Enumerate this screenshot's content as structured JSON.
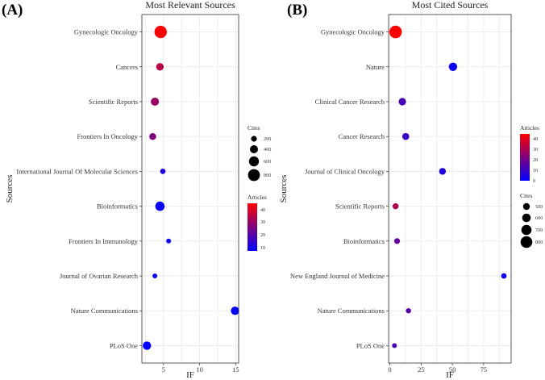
{
  "panels": [
    {
      "label": "(A)",
      "chart_data": {
        "type": "scatter",
        "title": "Most Relevant Sources",
        "xlabel": "IF",
        "ylabel": "Sources",
        "xlim": [
          2,
          15.4
        ],
        "xticks": [
          5,
          10,
          15
        ],
        "grid": true,
        "points": [
          {
            "source": "Gynecologic Oncology",
            "if": 4.6,
            "articles": 44,
            "cites": 850
          },
          {
            "source": "Cancers",
            "if": 4.5,
            "articles": 34,
            "cites": 370
          },
          {
            "source": "Scientific Reports",
            "if": 3.8,
            "articles": 30,
            "cites": 420
          },
          {
            "source": "Frontiers In Oncology",
            "if": 3.5,
            "articles": 26,
            "cites": 300
          },
          {
            "source": "International Journal Of Molecular Sciences",
            "if": 4.9,
            "articles": 12,
            "cites": 160
          },
          {
            "source": "Bioinformatics",
            "if": 4.5,
            "articles": 9,
            "cites": 550
          },
          {
            "source": "Frontiers In Immunology",
            "if": 5.7,
            "articles": 10,
            "cites": 90
          },
          {
            "source": "Journal of Ovarian Research",
            "if": 3.8,
            "articles": 9,
            "cites": 90
          },
          {
            "source": "Nature Communications",
            "if": 14.9,
            "articles": 8,
            "cites": 450
          },
          {
            "source": "PLoS One",
            "if": 2.7,
            "articles": 8,
            "cites": 450
          }
        ]
      },
      "legends": {
        "size": {
          "title": "Cites",
          "labels": [
            "200",
            "400",
            "600",
            "800"
          ]
        },
        "color": {
          "title": "Articles",
          "labels": [
            "40",
            "30",
            "20",
            "10"
          ]
        }
      }
    },
    {
      "label": "(B)",
      "chart_data": {
        "type": "scatter",
        "title": "Most Cited Sources",
        "xlabel": "IF",
        "ylabel": "Sources",
        "xlim": [
          -1,
          97
        ],
        "xticks": [
          0,
          25,
          50,
          75
        ],
        "grid": true,
        "points": [
          {
            "source": "Gynecologic Oncology",
            "if": 4.6,
            "articles": 44,
            "cites": 880
          },
          {
            "source": "Nature",
            "if": 50.5,
            "articles": 2,
            "cites": 620
          },
          {
            "source": "Clinical Cancer Research",
            "if": 10.0,
            "articles": 12,
            "cites": 560
          },
          {
            "source": "Cancer Research",
            "if": 12.7,
            "articles": 10,
            "cites": 530
          },
          {
            "source": "Journal of Clinical Oncology",
            "if": 42.1,
            "articles": 5,
            "cites": 520
          },
          {
            "source": "Scientific Reports",
            "if": 4.6,
            "articles": 30,
            "cites": 470
          },
          {
            "source": "Bioinformatics",
            "if": 5.8,
            "articles": 17,
            "cites": 460
          },
          {
            "source": "New England Journal of Medicine",
            "if": 91.2,
            "articles": 3,
            "cites": 440
          },
          {
            "source": "Nature Communications",
            "if": 14.9,
            "articles": 15,
            "cites": 420
          },
          {
            "source": "PLoS One",
            "if": 3.7,
            "articles": 13,
            "cites": 400
          }
        ]
      },
      "legends": {
        "color": {
          "title": "Articles",
          "labels": [
            "40",
            "30",
            "20",
            "10",
            "0"
          ]
        },
        "size": {
          "title": "Cites",
          "labels": [
            "500",
            "600",
            "700",
            "800"
          ]
        }
      }
    }
  ],
  "colors": {
    "low": "#0000ff",
    "high": "#ff0000"
  }
}
